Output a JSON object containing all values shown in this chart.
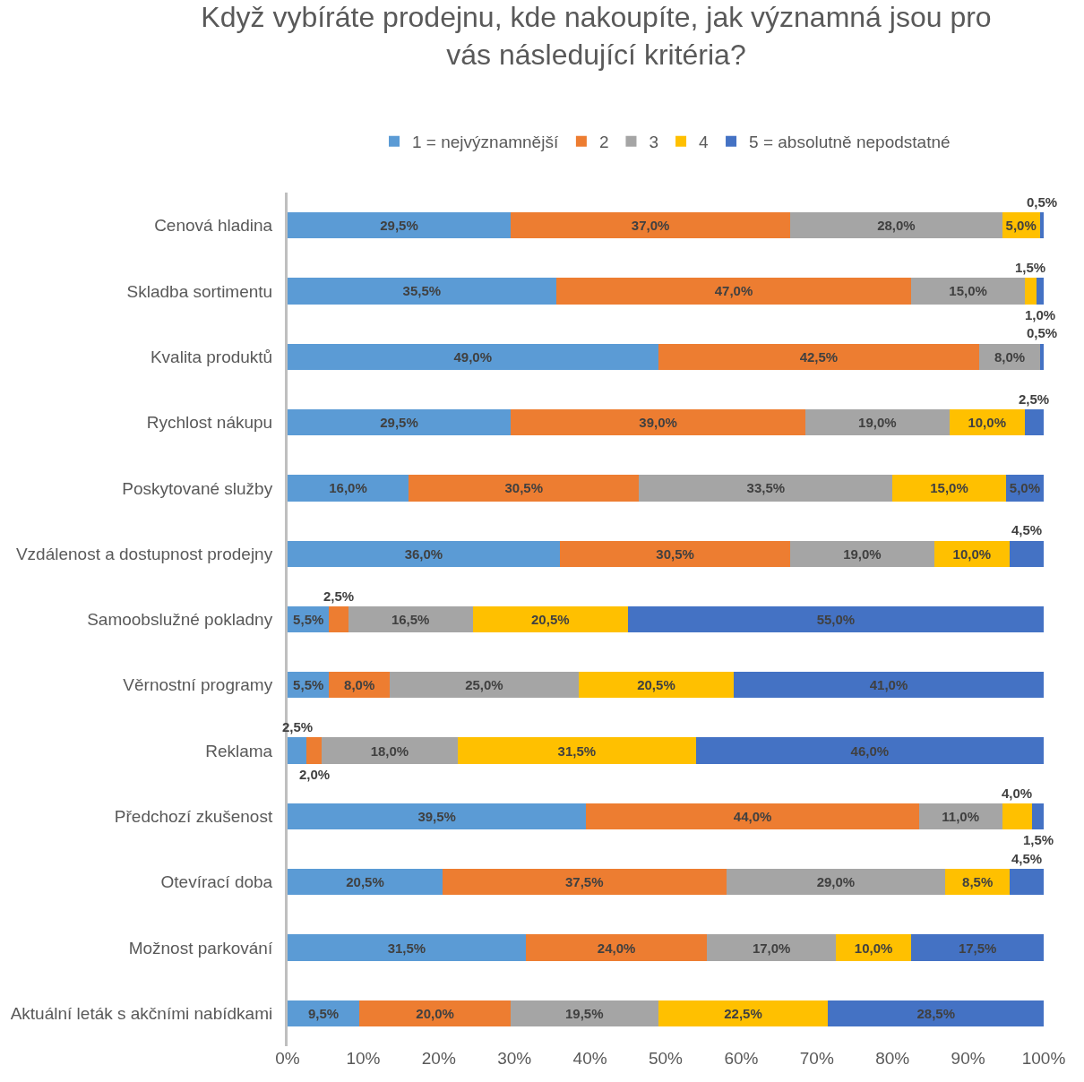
{
  "chart_data": {
    "type": "bar",
    "orientation": "horizontal",
    "stacked": true,
    "title": "Když vybíráte prodejnu, kde nakoupíte, jak významná jsou pro vás následující kritéria?",
    "categories": [
      "Cenová hladina",
      "Skladba sortimentu",
      "Kvalita produktů",
      "Rychlost nákupu",
      "Poskytované služby",
      "Vzdálenost a dostupnost prodejny",
      "Samoobslužné pokladny",
      "Věrnostní programy",
      "Reklama",
      "Předchozí zkušenost",
      "Otevírací doba",
      "Možnost parkování",
      "Aktuální leták s akčními nabídkami"
    ],
    "series": [
      {
        "name": "1 = nejvýznamnější",
        "color": "#5b9bd5",
        "values": [
          29.5,
          35.5,
          49,
          29.5,
          16,
          36,
          5.5,
          5.5,
          2.5,
          39.5,
          20.5,
          31.5,
          9.5
        ],
        "value_labels": [
          "29,5%",
          "35,5%",
          "49,0%",
          "29,5%",
          "16,0%",
          "36,0%",
          "5,5%",
          "5,5%",
          "2,5%",
          "39,5%",
          "20,5%",
          "31,5%",
          "9,5%"
        ]
      },
      {
        "name": "2",
        "color": "#ed7d31",
        "values": [
          37,
          47,
          42.5,
          39,
          30.5,
          30.5,
          2.5,
          8,
          2,
          44,
          37.5,
          24,
          20
        ],
        "value_labels": [
          "37,0%",
          "47,0%",
          "42,5%",
          "39,0%",
          "30,5%",
          "30,5%",
          "2,5%",
          "8,0%",
          "2,0%",
          "44,0%",
          "37,5%",
          "24,0%",
          "20,0%"
        ]
      },
      {
        "name": "3",
        "color": "#a5a5a5",
        "values": [
          28,
          15,
          8,
          19,
          33.5,
          19,
          16.5,
          25,
          18,
          11,
          29,
          17,
          19.5
        ],
        "value_labels": [
          "28,0%",
          "15,0%",
          "8,0%",
          "19,0%",
          "33,5%",
          "19,0%",
          "16,5%",
          "25,0%",
          "18,0%",
          "11,0%",
          "29,0%",
          "17,0%",
          "19,5%"
        ]
      },
      {
        "name": "4",
        "color": "#ffc000",
        "values": [
          5,
          1.5,
          null,
          10,
          15,
          10,
          20.5,
          20.5,
          31.5,
          4,
          8.5,
          10,
          22.5
        ],
        "value_labels": [
          "5,0%",
          "1,5%",
          null,
          "10,0%",
          "15,0%",
          "10,0%",
          "20,5%",
          "20,5%",
          "31,5%",
          "4,0%",
          "8,5%",
          "10,0%",
          "22,5%"
        ]
      },
      {
        "name": "5 = absolutně nepodstatné",
        "color": "#4472c4",
        "values": [
          0.5,
          1,
          0.5,
          2.5,
          5,
          4.5,
          55,
          41,
          46,
          1.5,
          4.5,
          17.5,
          28.5
        ],
        "value_labels": [
          "0,5%",
          "1,0%",
          "0,5%",
          "2,5%",
          "5,0%",
          "4,5%",
          "55,0%",
          "41,0%",
          "46,0%",
          "1,5%",
          "4,5%",
          "17,5%",
          "28,5%"
        ]
      }
    ],
    "xlim": [
      0,
      100
    ],
    "xticks": [
      {
        "value": 0,
        "label": "0%"
      },
      {
        "value": 10,
        "label": "10%"
      },
      {
        "value": 20,
        "label": "20%"
      },
      {
        "value": 30,
        "label": "30%"
      },
      {
        "value": 40,
        "label": "40%"
      },
      {
        "value": 50,
        "label": "50%"
      },
      {
        "value": 60,
        "label": "60%"
      },
      {
        "value": 70,
        "label": "70%"
      },
      {
        "value": 80,
        "label": "80%"
      },
      {
        "value": 90,
        "label": "90%"
      },
      {
        "value": 100,
        "label": "100%"
      }
    ],
    "legend": "top",
    "grid": false
  }
}
